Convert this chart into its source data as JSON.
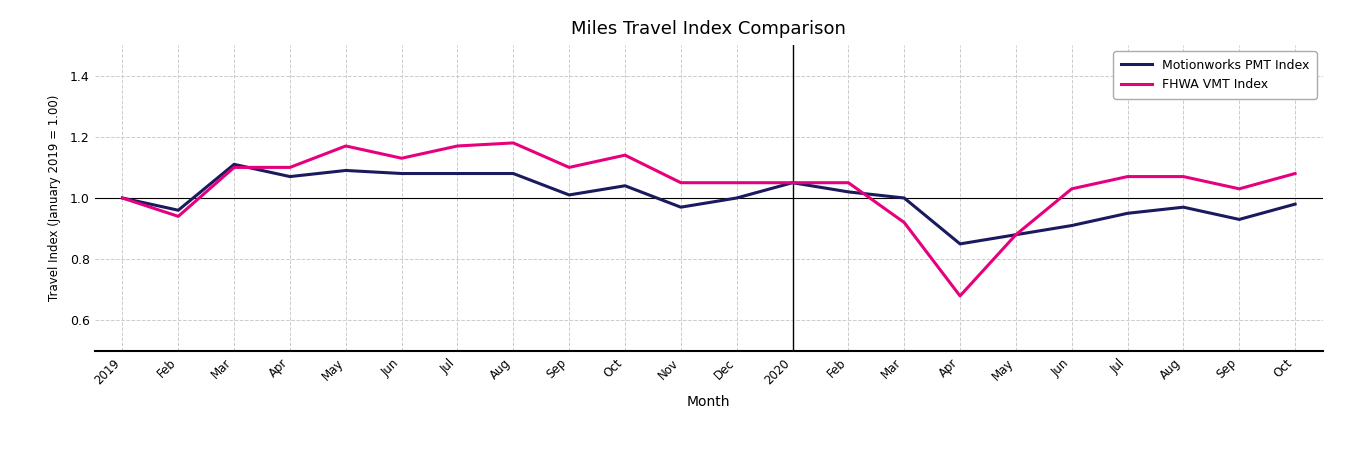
{
  "title": "Miles Travel Index Comparison",
  "xlabel": "Month",
  "ylabel": "Travel Index (January 2019 = 1.00)",
  "ylim": [
    0.5,
    1.5
  ],
  "yticks": [
    0.6,
    0.8,
    1.0,
    1.2,
    1.4
  ],
  "x_labels": [
    "2019",
    "Feb",
    "Mar",
    "Apr",
    "May",
    "Jun",
    "Jul",
    "Aug",
    "Sep",
    "Oct",
    "Nov",
    "Dec",
    "2020",
    "Feb",
    "Mar",
    "Apr",
    "May",
    "Jun",
    "Jul",
    "Aug",
    "Sep",
    "Oct"
  ],
  "pmt_values": [
    1.0,
    0.96,
    1.11,
    1.07,
    1.09,
    1.08,
    1.08,
    1.08,
    1.01,
    1.04,
    0.97,
    1.0,
    1.05,
    1.02,
    1.0,
    0.85,
    0.88,
    0.91,
    0.95,
    0.97,
    0.93,
    0.98
  ],
  "fhwa_values": [
    1.0,
    0.94,
    1.1,
    1.1,
    1.17,
    1.13,
    1.17,
    1.18,
    1.1,
    1.14,
    1.05,
    1.05,
    1.05,
    1.05,
    0.92,
    0.68,
    0.88,
    1.03,
    1.07,
    1.07,
    1.03,
    1.08
  ],
  "pmt_color": "#1a1a5e",
  "fhwa_color": "#e6007e",
  "vline_x": 12,
  "hline_y": 1.0,
  "pmt_label": "Motionworks PMT Index",
  "fhwa_label": "FHWA VMT Index",
  "bg_color": "#ffffff",
  "grid_color": "#cccccc",
  "linewidth": 2.2,
  "title_fontsize": 13
}
